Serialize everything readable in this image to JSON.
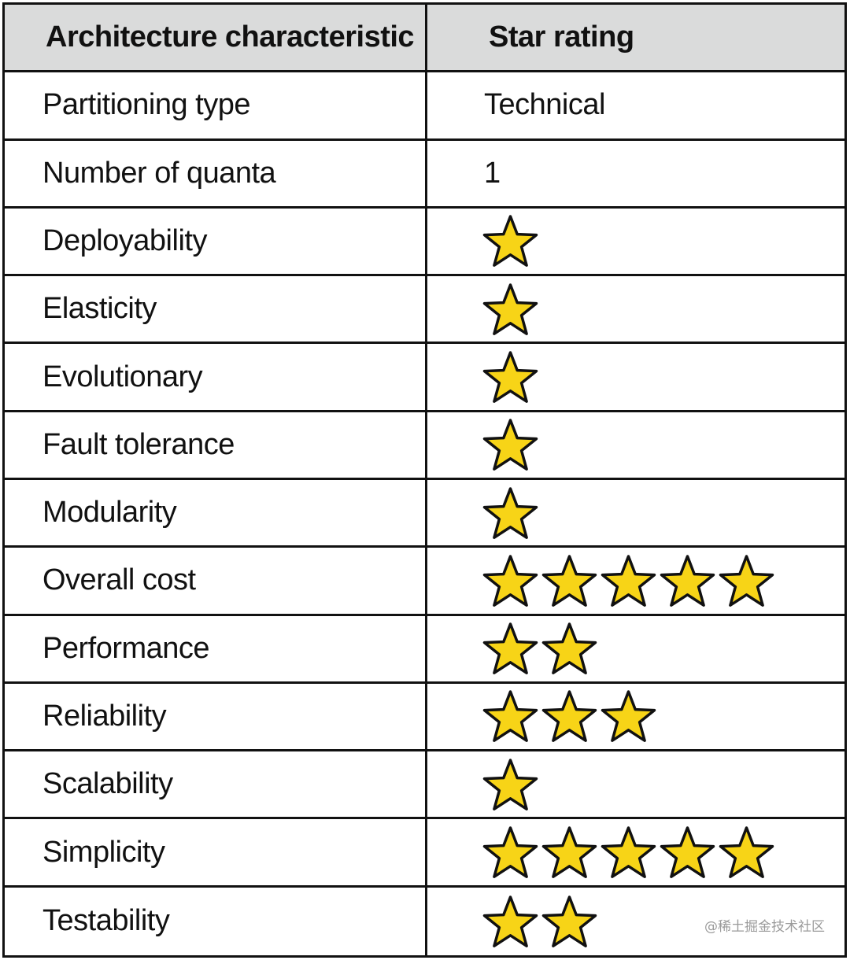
{
  "table": {
    "headers": {
      "characteristic": "Architecture characteristic",
      "rating": "Star rating"
    },
    "rows": [
      {
        "characteristic": "Partitioning type",
        "value": "Technical"
      },
      {
        "characteristic": "Number of quanta",
        "value": "1"
      },
      {
        "characteristic": "Deployability",
        "stars": 1
      },
      {
        "characteristic": "Elasticity",
        "stars": 1
      },
      {
        "characteristic": "Evolutionary",
        "stars": 1
      },
      {
        "characteristic": "Fault tolerance",
        "stars": 1
      },
      {
        "characteristic": "Modularity",
        "stars": 1
      },
      {
        "characteristic": "Overall cost",
        "stars": 5
      },
      {
        "characteristic": "Performance",
        "stars": 2
      },
      {
        "characteristic": "Reliability",
        "stars": 3
      },
      {
        "characteristic": "Scalability",
        "stars": 1
      },
      {
        "characteristic": "Simplicity",
        "stars": 5
      },
      {
        "characteristic": "Testability",
        "stars": 2
      }
    ]
  },
  "colors": {
    "star_fill": "#f7d417",
    "header_bg": "#dadbdb",
    "border": "#111111"
  },
  "icons": {
    "rating": "star-icon"
  },
  "watermark": "@稀土掘金技术社区"
}
